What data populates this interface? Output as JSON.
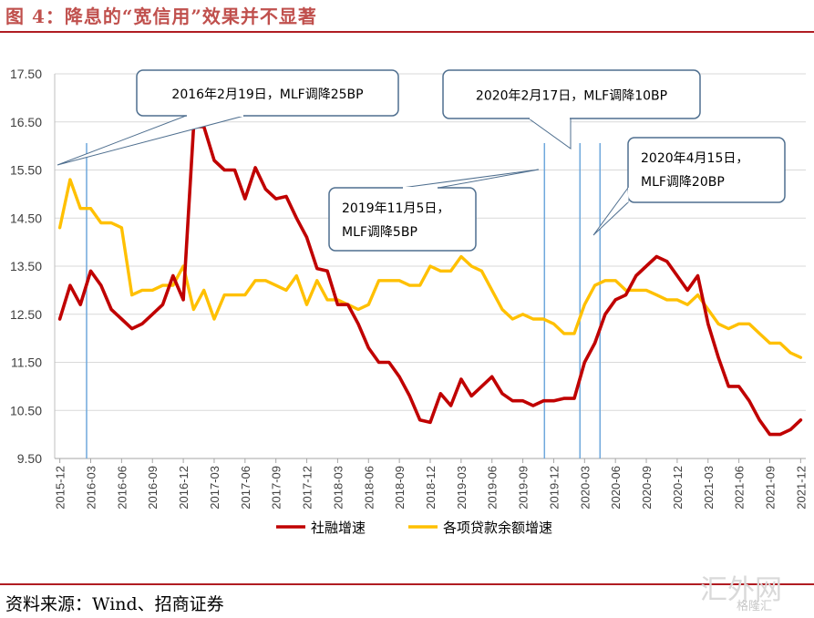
{
  "figure": {
    "title": "图 4：降息的“宽信用”效果并不显著",
    "source": "资料来源：Wind、招商证券",
    "watermark": "汇外网",
    "watermark_sub": "格隆汇"
  },
  "colors": {
    "title": "#c0504d",
    "rule": "#b01c22",
    "series1": "#c00000",
    "series2": "#ffc000",
    "marker_line": "#6fa8dc",
    "callout_border": "#4f6f8f"
  },
  "chart_data": {
    "type": "line",
    "title": "",
    "xlabel": "",
    "ylabel": "",
    "ylim": [
      9.5,
      17.5
    ],
    "yticks": [
      "9.50",
      "10.50",
      "11.50",
      "12.50",
      "13.50",
      "14.50",
      "15.50",
      "16.50",
      "17.50"
    ],
    "xticks": [
      "2015-12",
      "2016-03",
      "2016-06",
      "2016-09",
      "2016-12",
      "2017-03",
      "2017-06",
      "2017-09",
      "2017-12",
      "2018-03",
      "2018-06",
      "2018-09",
      "2018-12",
      "2019-03",
      "2019-06",
      "2019-09",
      "2019-12",
      "2020-03",
      "2020-06",
      "2020-09",
      "2020-12",
      "2021-03",
      "2021-06",
      "2021-09",
      "2021-12"
    ],
    "x_start": "2015-12",
    "series": [
      {
        "name": "社融增速",
        "color": "#c00000",
        "values": [
          12.4,
          13.1,
          12.7,
          13.4,
          13.1,
          12.6,
          12.4,
          12.2,
          12.3,
          12.5,
          12.7,
          13.3,
          12.8,
          16.4,
          16.4,
          15.7,
          15.5,
          15.5,
          14.9,
          15.55,
          15.1,
          14.9,
          14.95,
          14.5,
          14.1,
          13.45,
          13.4,
          12.7,
          12.7,
          12.3,
          11.8,
          11.5,
          11.5,
          11.2,
          10.8,
          10.3,
          10.25,
          10.85,
          10.6,
          11.15,
          10.8,
          11.0,
          11.2,
          10.85,
          10.7,
          10.7,
          10.6,
          10.7,
          10.7,
          10.75,
          10.75,
          11.5,
          11.9,
          12.5,
          12.8,
          12.9,
          13.3,
          13.5,
          13.7,
          13.6,
          13.3,
          13.0,
          13.3,
          12.3,
          11.6,
          11.0,
          11.0,
          10.7,
          10.3,
          10.0,
          10.0,
          10.1,
          10.3
        ]
      },
      {
        "name": "各项贷款余额增速",
        "color": "#ffc000",
        "values": [
          14.3,
          15.3,
          14.7,
          14.7,
          14.4,
          14.4,
          14.3,
          12.9,
          13.0,
          13.0,
          13.1,
          13.1,
          13.5,
          12.6,
          13.0,
          12.4,
          12.9,
          12.9,
          12.9,
          13.2,
          13.2,
          13.1,
          13.0,
          13.3,
          12.7,
          13.2,
          12.8,
          12.8,
          12.7,
          12.6,
          12.7,
          13.2,
          13.2,
          13.2,
          13.1,
          13.1,
          13.5,
          13.4,
          13.4,
          13.7,
          13.5,
          13.4,
          13.0,
          12.6,
          12.4,
          12.5,
          12.4,
          12.4,
          12.3,
          12.1,
          12.1,
          12.7,
          13.1,
          13.2,
          13.2,
          13.0,
          13.0,
          13.0,
          12.9,
          12.8,
          12.8,
          12.7,
          12.9,
          12.6,
          12.3,
          12.2,
          12.3,
          12.3,
          12.1,
          11.9,
          11.9,
          11.7,
          11.6
        ]
      }
    ],
    "annotations": [
      {
        "text": "2016年2月19日，MLF调降25BP",
        "line1": "2016年2月19日，MLF调降25BP",
        "line2": "",
        "date_index": 2.6
      },
      {
        "text": "2019年11月5日，MLF调降5BP",
        "line1": "2019年11月5日，",
        "line2": "MLF调降5BP",
        "date_index": 47.1
      },
      {
        "text": "2020年2月17日，MLF调降10BP",
        "line1": "2020年2月17日，MLF调降10BP",
        "line2": "",
        "date_index": 50.55
      },
      {
        "text": "2020年4月15日，MLF调降20BP",
        "line1": "2020年4月15日，",
        "line2": "MLF调降20BP",
        "date_index": 52.5
      }
    ],
    "legend": {
      "position": "bottom"
    }
  }
}
